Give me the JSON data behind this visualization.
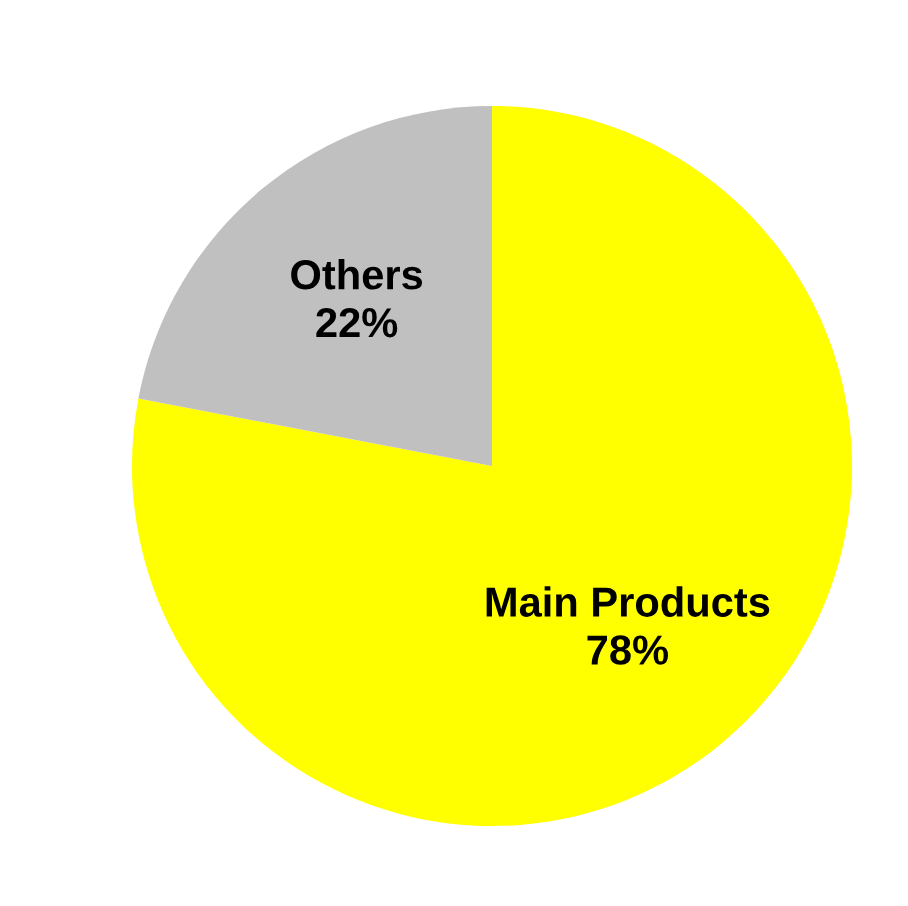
{
  "chart_data": {
    "type": "pie",
    "categories": [
      "Main Products",
      "Others"
    ],
    "values": [
      78,
      22
    ],
    "value_labels": [
      "78%",
      "22%"
    ],
    "colors": [
      "#ffff00",
      "#c0c0c0"
    ]
  }
}
